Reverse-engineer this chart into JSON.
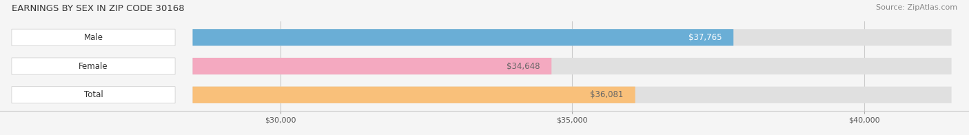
{
  "title": "EARNINGS BY SEX IN ZIP CODE 30168",
  "source": "Source: ZipAtlas.com",
  "categories": [
    "Male",
    "Female",
    "Total"
  ],
  "values": [
    37765,
    34648,
    36081
  ],
  "bar_colors": [
    "#6aaed6",
    "#f4a9c0",
    "#f9c07a"
  ],
  "label_colors": [
    "white",
    "#666666",
    "#666666"
  ],
  "bar_labels": [
    "$37,765",
    "$34,648",
    "$36,081"
  ],
  "xmin": 28500,
  "xmax": 41500,
  "xticks": [
    30000,
    35000,
    40000
  ],
  "xtick_labels": [
    "$30,000",
    "$35,000",
    "$40,000"
  ],
  "bar_height": 0.58,
  "bg_color": "#f5f5f5",
  "bar_bg_color": "#e0e0e0",
  "title_fontsize": 9.5,
  "source_fontsize": 8,
  "label_fontsize": 8.5,
  "category_fontsize": 8.5
}
